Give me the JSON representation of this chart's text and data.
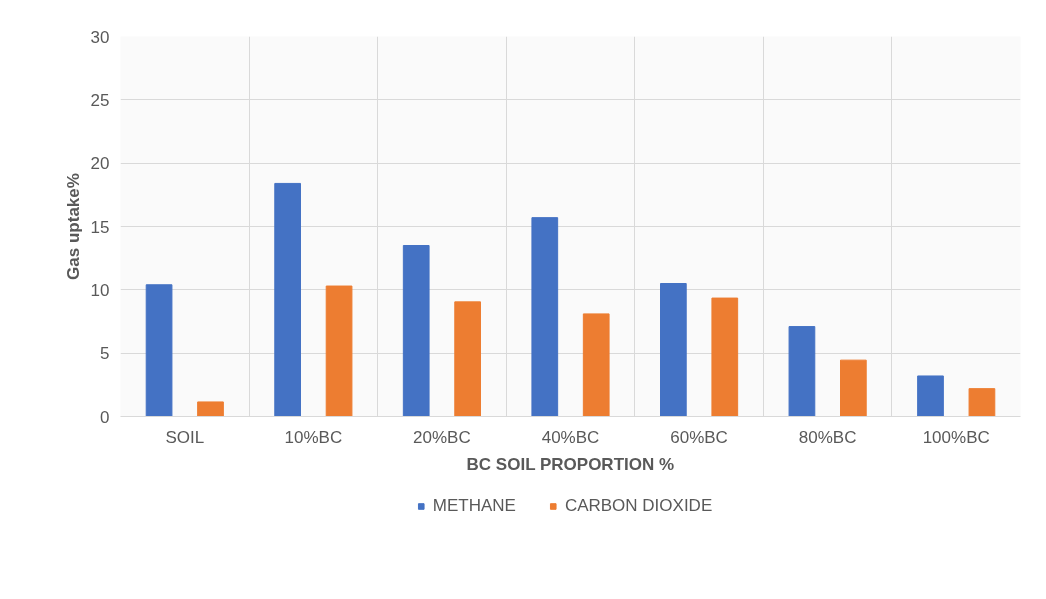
{
  "chart_data": {
    "type": "bar",
    "xlabel": "BC SOIL PROPORTION %",
    "ylabel": "Gas uptake%",
    "categories": [
      "SOIL",
      "10%BC",
      "20%BC",
      "40%BC",
      "60%BC",
      "80%BC",
      "100%BC"
    ],
    "series": [
      {
        "name": "METHANE",
        "color": "#4472c4",
        "values": [
          10.4,
          18.4,
          13.5,
          15.7,
          10.5,
          7.1,
          3.2
        ]
      },
      {
        "name": "CARBON DIOXIDE",
        "color": "#ed7d31",
        "values": [
          1.15,
          10.3,
          9.05,
          8.1,
          9.35,
          4.45,
          2.2
        ]
      }
    ],
    "ylim": [
      0,
      30
    ],
    "yticks": [
      0,
      5,
      10,
      15,
      20,
      25,
      30
    ],
    "grid": true,
    "legend": "bottom"
  }
}
